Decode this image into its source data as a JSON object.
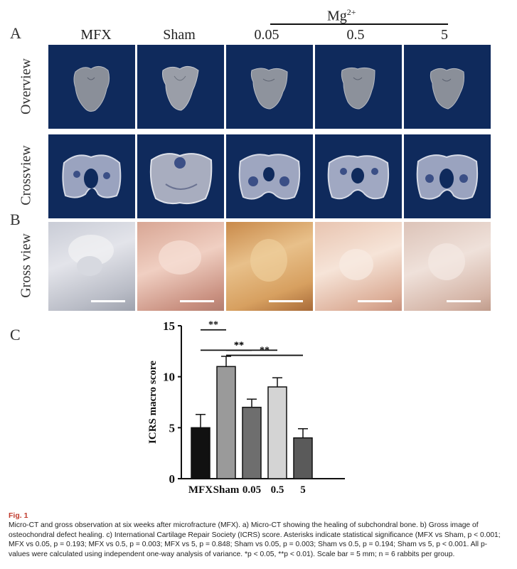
{
  "panels": {
    "a": "A",
    "b": "B",
    "c": "C"
  },
  "columns": [
    "MFX",
    "Sham",
    "0.05",
    "0.5",
    "5"
  ],
  "mg_label": "Mg",
  "mg_sup": "2+",
  "rows": {
    "overview": "Overview",
    "crossview": "Crossview",
    "gross": "Gross view"
  },
  "colors": {
    "ct_background": "#0f2a5c",
    "caption_label": "#c0392b"
  },
  "chart_data": {
    "type": "bar",
    "categories": [
      "MFX",
      "Sham",
      "0.05",
      "0.5",
      "5"
    ],
    "values": [
      5,
      11,
      7,
      9,
      4
    ],
    "errors": [
      1.3,
      1.0,
      0.8,
      0.9,
      0.9
    ],
    "bar_colors": [
      "#111111",
      "#9a9a9a",
      "#6e6e6e",
      "#d4d4d4",
      "#5a5a5a"
    ],
    "ylabel": "ICRS macro  score",
    "yticks": [
      "0",
      "5",
      "10",
      "15"
    ],
    "ylim": [
      0,
      15
    ],
    "significance": [
      {
        "from": "MFX",
        "to": "Sham",
        "label": "**"
      },
      {
        "from": "MFX",
        "to": "0.5",
        "label": "**"
      },
      {
        "from": "Sham",
        "to": "0.05",
        "label": "**"
      },
      {
        "from": "Sham",
        "to": "5",
        "label": "**"
      }
    ]
  },
  "caption": {
    "label": "Fig. 1",
    "text": "Micro-CT and gross observation at six weeks after microfracture (MFX). a) Micro-CT showing the healing of subchondral bone. b) Gross image of osteochondral defect healing. c) International Cartilage Repair Society (ICRS) score. Asterisks indicate statistical significance (MFX vs Sham, p < 0.001; MFX vs 0.05, p = 0.193; MFX vs 0.5, p = 0.003; MFX vs 5, p = 0.848; Sham vs 0.05, p = 0.003; Sham vs 0.5, p = 0.194; Sham vs 5, p < 0.001. All p-values were calculated using independent one-way analysis of variance. *p < 0.05, **p < 0.01). Scale bar = 5 mm; n = 6 rabbits per group."
  }
}
